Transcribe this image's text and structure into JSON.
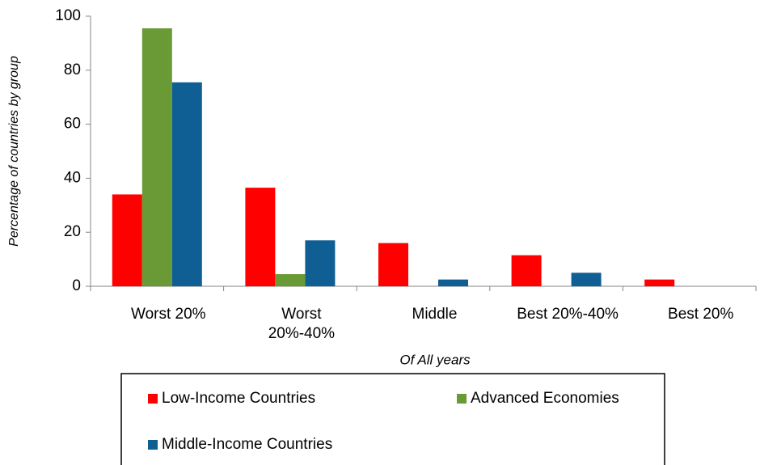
{
  "chart_data": {
    "type": "bar",
    "y_label": "Percentage of countries by group",
    "x_label": "Of All years",
    "categories": [
      "Worst 20%",
      "Worst 20%-40%",
      "Middle",
      "Best 20%-40%",
      "Best 20%"
    ],
    "series": [
      {
        "name": "Low-Income Countries",
        "color": "#ff0000",
        "values": [
          34,
          36.5,
          16,
          11.5,
          2.5
        ]
      },
      {
        "name": "Advanced Economies",
        "color": "#6a9a35",
        "values": [
          95.5,
          4.5,
          0,
          0,
          0
        ]
      },
      {
        "name": "Middle-Income Countries",
        "color": "#0f5e94",
        "values": [
          75.5,
          17,
          2.5,
          5,
          0
        ]
      }
    ],
    "ylim": [
      0,
      100
    ],
    "yticks": [
      0,
      20,
      40,
      60,
      80,
      100
    ],
    "grid": false,
    "legend": "bottom"
  }
}
